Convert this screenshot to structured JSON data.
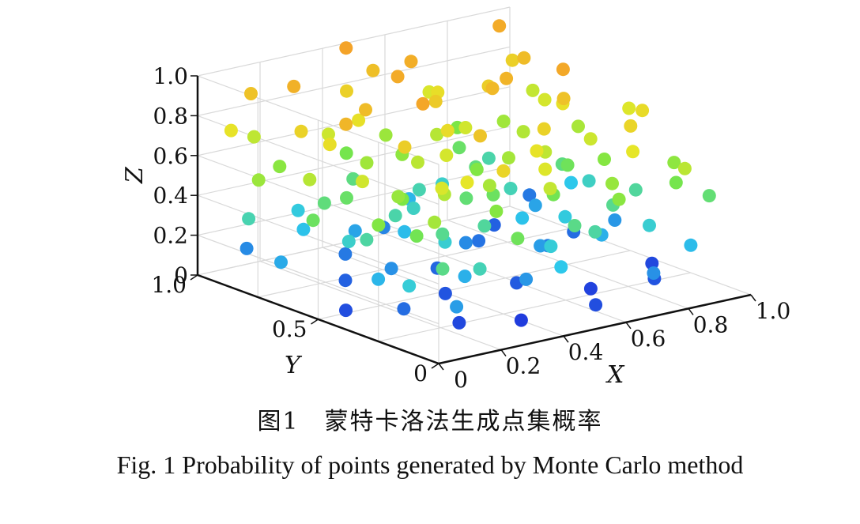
{
  "caption": {
    "cn": "图1　蒙特卡洛法生成点集概率",
    "en": "Fig. 1    Probability of points generated by Monte Carlo method"
  },
  "colors": {
    "low": "#1f3fe0",
    "mid_low": "#2ed6e6",
    "mid": "#86e64a",
    "mid_high": "#e6e629",
    "high": "#f5a52a"
  },
  "chart_data": {
    "type": "scatter",
    "projection": "3d",
    "title": "",
    "xlabel": "X",
    "ylabel": "Y",
    "zlabel": "Z",
    "xlim": [
      0,
      1.0
    ],
    "ylim": [
      0,
      1.0
    ],
    "zlim": [
      0,
      1.0
    ],
    "x_ticks": [
      "0",
      "0.2",
      "0.4",
      "0.6",
      "0.8",
      "1.0"
    ],
    "y_ticks": [
      "0",
      "0.5",
      "1.0"
    ],
    "z_ticks": [
      "0",
      "0.2",
      "0.4",
      "0.6",
      "0.8",
      "1.0"
    ],
    "grid": true,
    "legend": "none",
    "color_by": "z",
    "points": [
      [
        0.05,
        0.45,
        0.05
      ],
      [
        0.12,
        0.3,
        0.1
      ],
      [
        0.18,
        0.62,
        0.08
      ],
      [
        0.22,
        0.2,
        0.04
      ],
      [
        0.28,
        0.75,
        0.12
      ],
      [
        0.33,
        0.4,
        0.06
      ],
      [
        0.38,
        0.15,
        0.02
      ],
      [
        0.42,
        0.55,
        0.09
      ],
      [
        0.48,
        0.85,
        0.14
      ],
      [
        0.52,
        0.35,
        0.07
      ],
      [
        0.58,
        0.1,
        0.05
      ],
      [
        0.63,
        0.65,
        0.11
      ],
      [
        0.68,
        0.25,
        0.03
      ],
      [
        0.72,
        0.48,
        0.13
      ],
      [
        0.78,
        0.78,
        0.08
      ],
      [
        0.83,
        0.18,
        0.06
      ],
      [
        0.88,
        0.58,
        0.1
      ],
      [
        0.93,
        0.32,
        0.04
      ],
      [
        0.97,
        0.88,
        0.12
      ],
      [
        0.08,
        0.9,
        0.15
      ],
      [
        0.15,
        0.12,
        0.18
      ],
      [
        0.25,
        0.52,
        0.16
      ],
      [
        0.35,
        0.8,
        0.19
      ],
      [
        0.45,
        0.22,
        0.17
      ],
      [
        0.55,
        0.6,
        0.15
      ],
      [
        0.65,
        0.42,
        0.18
      ],
      [
        0.75,
        0.08,
        0.16
      ],
      [
        0.85,
        0.7,
        0.19
      ],
      [
        0.95,
        0.5,
        0.17
      ],
      [
        0.02,
        0.68,
        0.2
      ],
      [
        0.1,
        0.38,
        0.22
      ],
      [
        0.2,
        0.82,
        0.24
      ],
      [
        0.3,
        0.28,
        0.21
      ],
      [
        0.4,
        0.66,
        0.23
      ],
      [
        0.5,
        0.14,
        0.25
      ],
      [
        0.6,
        0.9,
        0.22
      ],
      [
        0.7,
        0.56,
        0.24
      ],
      [
        0.8,
        0.36,
        0.21
      ],
      [
        0.9,
        0.12,
        0.23
      ],
      [
        0.98,
        0.72,
        0.25
      ],
      [
        0.06,
        0.2,
        0.28
      ],
      [
        0.16,
        0.58,
        0.3
      ],
      [
        0.26,
        0.92,
        0.27
      ],
      [
        0.36,
        0.44,
        0.29
      ],
      [
        0.46,
        0.7,
        0.31
      ],
      [
        0.56,
        0.26,
        0.28
      ],
      [
        0.66,
        0.84,
        0.3
      ],
      [
        0.76,
        0.46,
        0.27
      ],
      [
        0.86,
        0.24,
        0.29
      ],
      [
        0.96,
        0.62,
        0.31
      ],
      [
        0.04,
        0.84,
        0.34
      ],
      [
        0.14,
        0.48,
        0.36
      ],
      [
        0.24,
        0.14,
        0.33
      ],
      [
        0.34,
        0.62,
        0.35
      ],
      [
        0.44,
        0.38,
        0.37
      ],
      [
        0.54,
        0.78,
        0.34
      ],
      [
        0.64,
        0.18,
        0.36
      ],
      [
        0.74,
        0.66,
        0.33
      ],
      [
        0.84,
        0.88,
        0.35
      ],
      [
        0.94,
        0.4,
        0.37
      ],
      [
        0.09,
        0.1,
        0.4
      ],
      [
        0.19,
        0.72,
        0.42
      ],
      [
        0.29,
        0.36,
        0.39
      ],
      [
        0.39,
        0.86,
        0.41
      ],
      [
        0.49,
        0.52,
        0.43
      ],
      [
        0.59,
        0.2,
        0.4
      ],
      [
        0.69,
        0.74,
        0.42
      ],
      [
        0.79,
        0.3,
        0.39
      ],
      [
        0.89,
        0.64,
        0.41
      ],
      [
        0.99,
        0.16,
        0.43
      ],
      [
        0.03,
        0.56,
        0.46
      ],
      [
        0.13,
        0.26,
        0.48
      ],
      [
        0.23,
        0.68,
        0.45
      ],
      [
        0.33,
        0.1,
        0.47
      ],
      [
        0.43,
        0.94,
        0.49
      ],
      [
        0.53,
        0.46,
        0.46
      ],
      [
        0.63,
        0.34,
        0.48
      ],
      [
        0.73,
        0.86,
        0.45
      ],
      [
        0.83,
        0.54,
        0.47
      ],
      [
        0.93,
        0.22,
        0.49
      ],
      [
        0.07,
        0.34,
        0.52
      ],
      [
        0.17,
        0.88,
        0.54
      ],
      [
        0.27,
        0.5,
        0.51
      ],
      [
        0.37,
        0.24,
        0.53
      ],
      [
        0.47,
        0.76,
        0.55
      ],
      [
        0.57,
        0.58,
        0.52
      ],
      [
        0.67,
        0.12,
        0.54
      ],
      [
        0.77,
        0.92,
        0.51
      ],
      [
        0.87,
        0.44,
        0.53
      ],
      [
        0.97,
        0.28,
        0.55
      ],
      [
        0.01,
        0.76,
        0.58
      ],
      [
        0.11,
        0.16,
        0.6
      ],
      [
        0.21,
        0.44,
        0.57
      ],
      [
        0.31,
        0.7,
        0.59
      ],
      [
        0.41,
        0.32,
        0.61
      ],
      [
        0.51,
        0.88,
        0.58
      ],
      [
        0.61,
        0.5,
        0.6
      ],
      [
        0.71,
        0.2,
        0.57
      ],
      [
        0.81,
        0.78,
        0.59
      ],
      [
        0.91,
        0.6,
        0.61
      ],
      [
        0.05,
        0.6,
        0.64
      ],
      [
        0.15,
        0.96,
        0.66
      ],
      [
        0.25,
        0.3,
        0.63
      ],
      [
        0.35,
        0.54,
        0.65
      ],
      [
        0.45,
        0.12,
        0.67
      ],
      [
        0.55,
        0.72,
        0.64
      ],
      [
        0.65,
        0.4,
        0.66
      ],
      [
        0.75,
        0.62,
        0.63
      ],
      [
        0.85,
        0.08,
        0.65
      ],
      [
        0.95,
        0.84,
        0.67
      ],
      [
        0.08,
        0.42,
        0.7
      ],
      [
        0.18,
        0.22,
        0.72
      ],
      [
        0.28,
        0.82,
        0.69
      ],
      [
        0.38,
        0.46,
        0.71
      ],
      [
        0.48,
        0.18,
        0.73
      ],
      [
        0.58,
        0.64,
        0.7
      ],
      [
        0.68,
        0.92,
        0.72
      ],
      [
        0.78,
        0.38,
        0.69
      ],
      [
        0.88,
        0.7,
        0.71
      ],
      [
        0.98,
        0.48,
        0.73
      ],
      [
        0.03,
        0.9,
        0.76
      ],
      [
        0.13,
        0.62,
        0.78
      ],
      [
        0.23,
        0.18,
        0.75
      ],
      [
        0.33,
        0.76,
        0.77
      ],
      [
        0.43,
        0.52,
        0.79
      ],
      [
        0.53,
        0.28,
        0.76
      ],
      [
        0.63,
        0.82,
        0.78
      ],
      [
        0.73,
        0.14,
        0.75
      ],
      [
        0.83,
        0.56,
        0.77
      ],
      [
        0.93,
        0.36,
        0.79
      ],
      [
        0.1,
        0.7,
        0.82
      ],
      [
        0.2,
        0.4,
        0.84
      ],
      [
        0.3,
        0.12,
        0.81
      ],
      [
        0.4,
        0.9,
        0.83
      ],
      [
        0.5,
        0.66,
        0.85
      ],
      [
        0.6,
        0.34,
        0.82
      ],
      [
        0.7,
        0.7,
        0.84
      ],
      [
        0.8,
        0.24,
        0.81
      ],
      [
        0.9,
        0.86,
        0.83
      ],
      [
        0.14,
        0.96,
        0.88
      ],
      [
        0.26,
        0.64,
        0.9
      ],
      [
        0.38,
        0.32,
        0.87
      ],
      [
        0.5,
        0.92,
        0.89
      ],
      [
        0.62,
        0.58,
        0.91
      ],
      [
        0.74,
        0.44,
        0.88
      ],
      [
        0.86,
        0.76,
        0.9
      ],
      [
        0.2,
        0.86,
        0.94
      ],
      [
        0.44,
        0.74,
        0.96
      ],
      [
        0.68,
        0.6,
        0.93
      ],
      [
        0.32,
        0.48,
        0.98
      ],
      [
        0.56,
        0.84,
        0.95
      ],
      [
        0.8,
        0.52,
        0.97
      ],
      [
        0.12,
        0.54,
        0.92
      ],
      [
        0.92,
        0.94,
        0.96
      ],
      [
        0.46,
        0.98,
        0.99
      ]
    ]
  }
}
